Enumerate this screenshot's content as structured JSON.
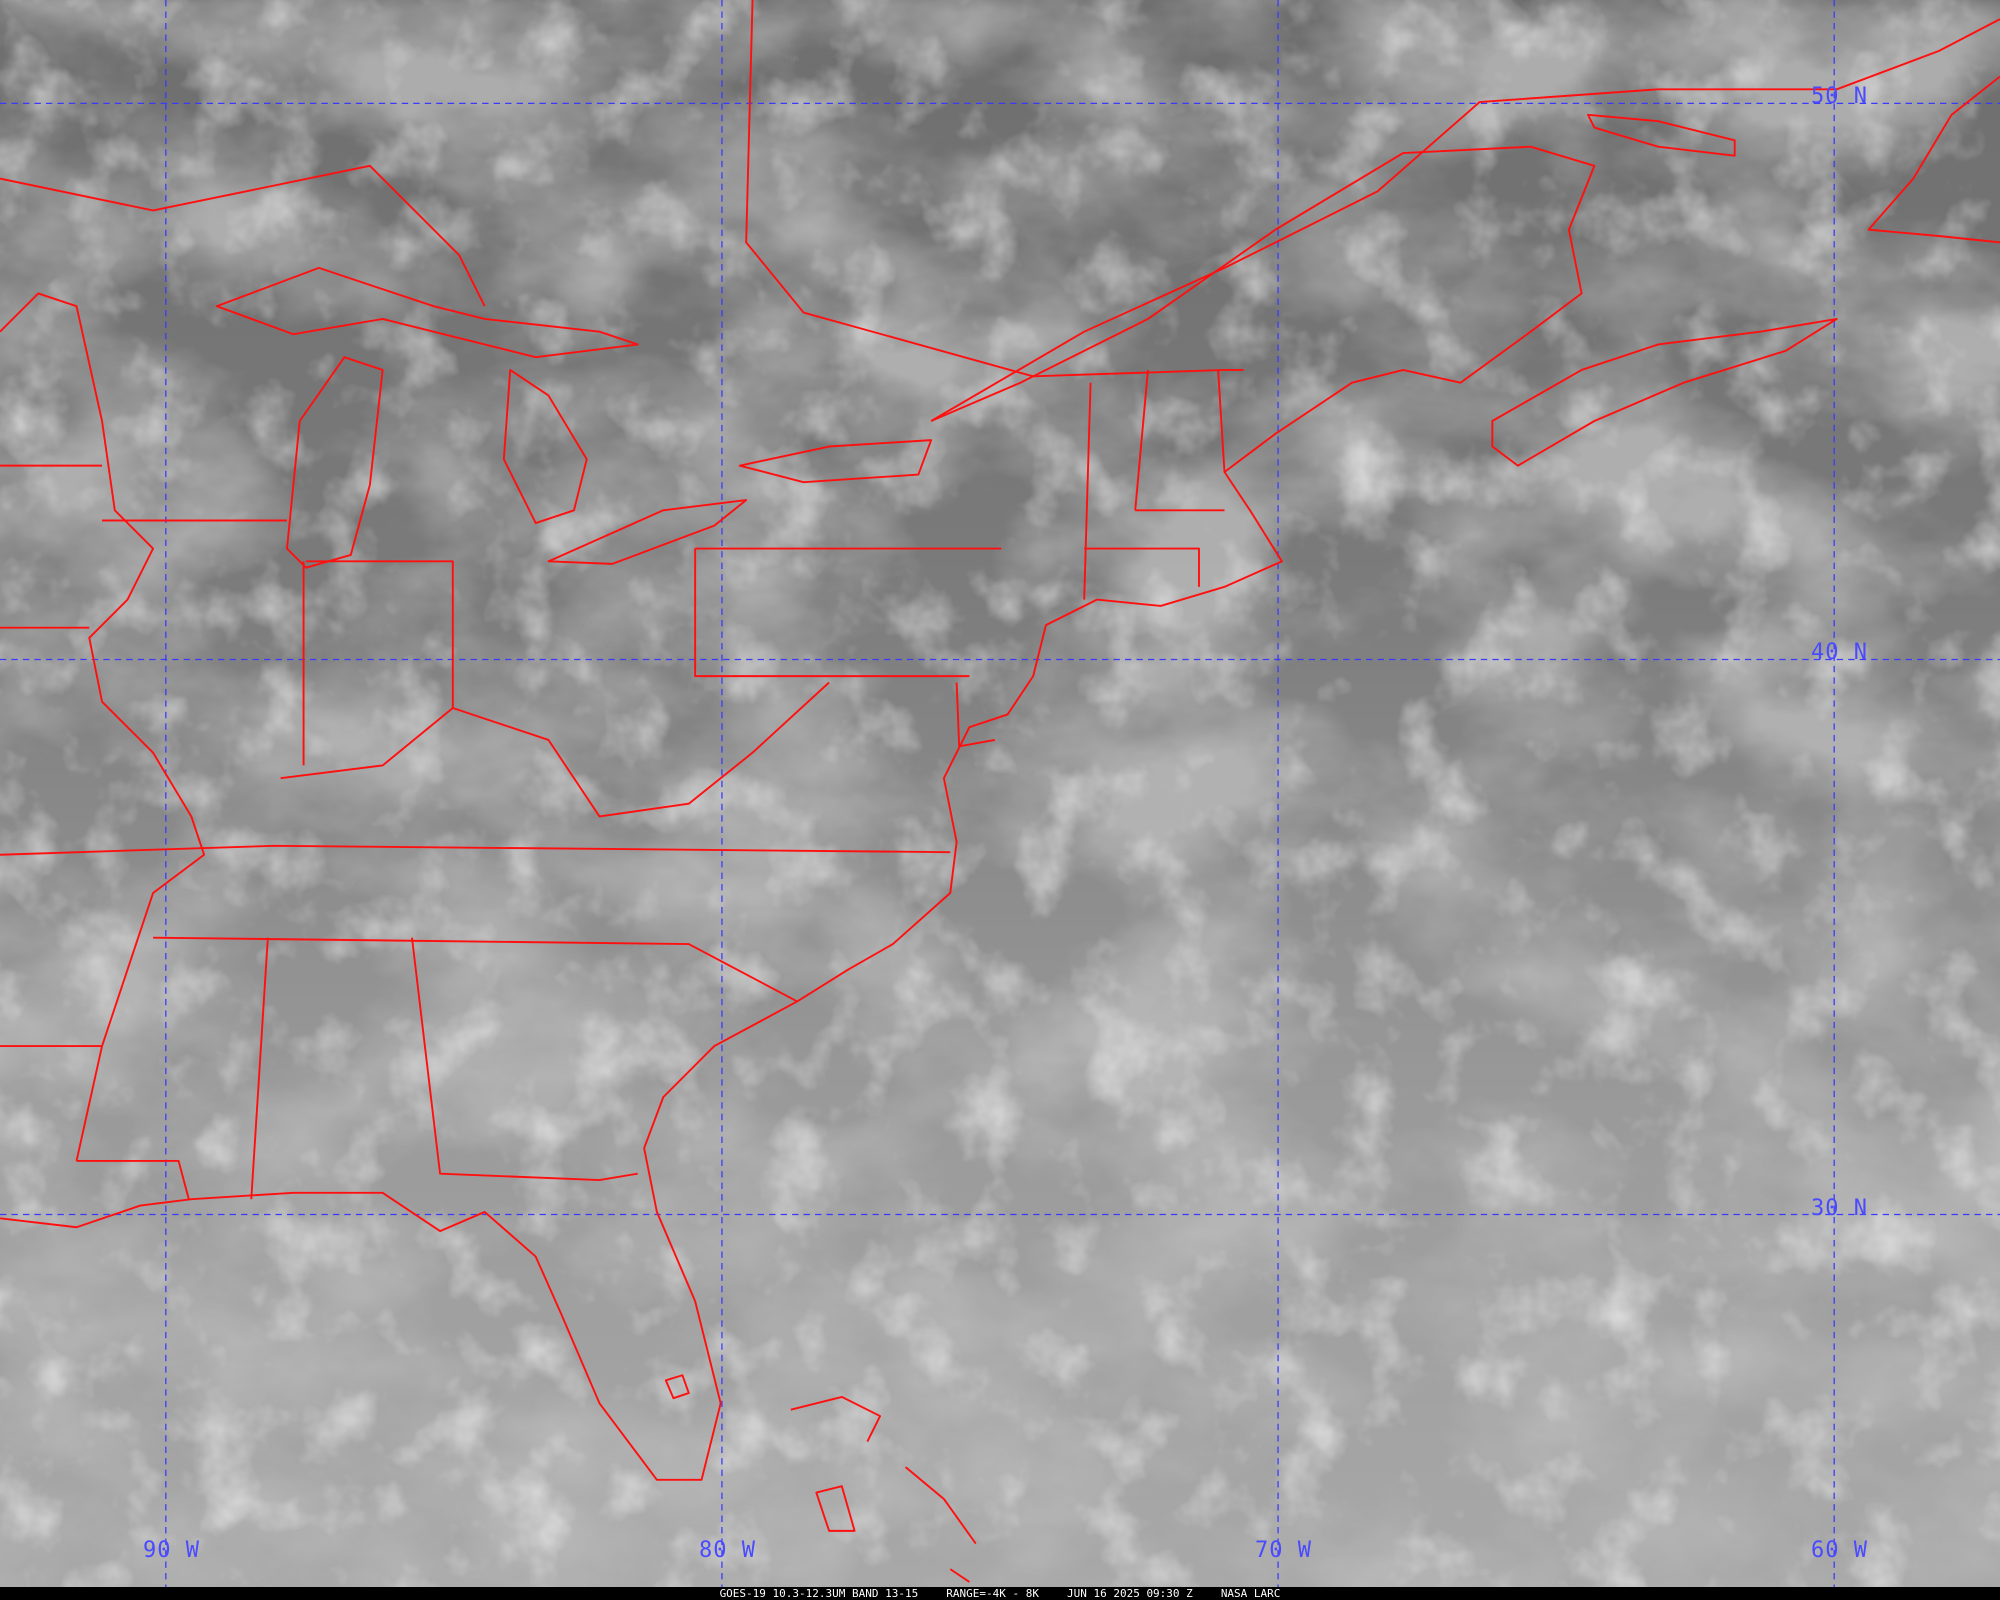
{
  "grid_labels": {
    "lon": [
      "90 W",
      "80 W",
      "70 W",
      "60 W"
    ],
    "lat": [
      "50 N",
      "40 N",
      "30 N"
    ]
  },
  "caption": {
    "satellite_band": "GOES-19 10.3-12.3UM BAND 13-15",
    "range": "RANGE=-4K - 8K",
    "datetime": "JUN 16 2025 09:30 Z",
    "source": "NASA LARC"
  },
  "colors": {
    "coastline": "#ff1010",
    "grid": "#3a3aff",
    "caption_bg": "#000000"
  }
}
